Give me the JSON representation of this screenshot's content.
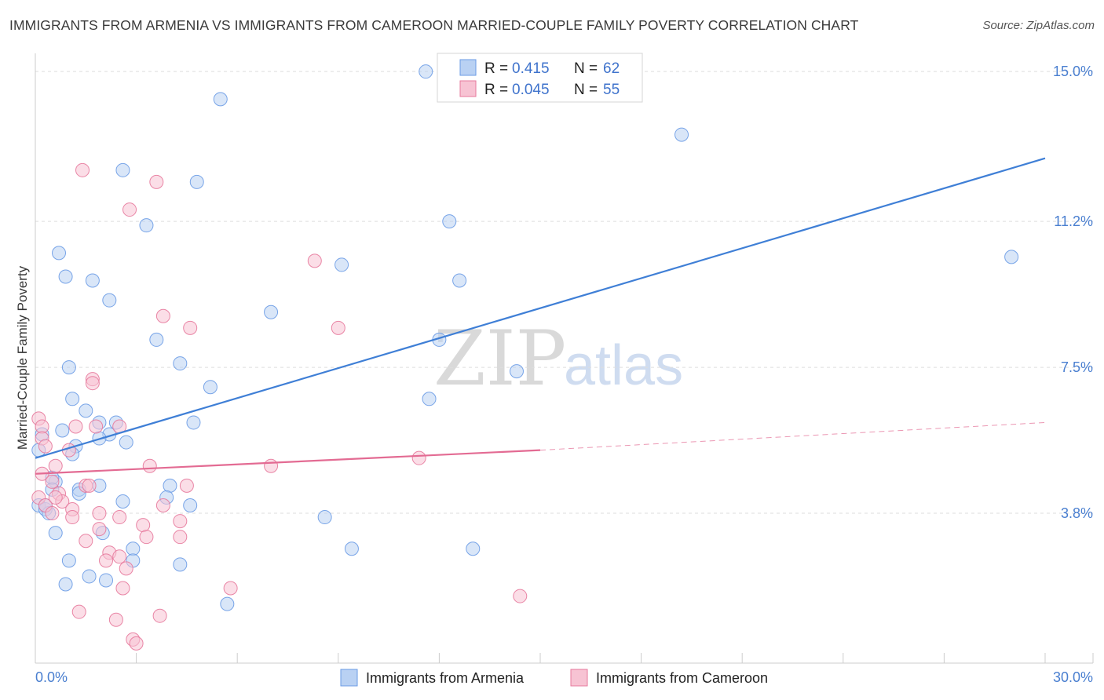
{
  "chart_data": {
    "type": "scatter",
    "title": "IMMIGRANTS FROM ARMENIA VS IMMIGRANTS FROM CAMEROON MARRIED-COUPLE FAMILY POVERTY CORRELATION CHART",
    "source": "Source: ZipAtlas.com",
    "ylabel": "Married-Couple Family Poverty",
    "xlim": [
      0,
      30
    ],
    "ylim": [
      0,
      15.7
    ],
    "x_tick_labels": {
      "min": "0.0%",
      "max": "30.0%"
    },
    "y_ticks": [
      {
        "value": 3.8,
        "label": "3.8%"
      },
      {
        "value": 7.5,
        "label": "7.5%"
      },
      {
        "value": 11.2,
        "label": "11.2%"
      },
      {
        "value": 15.0,
        "label": "15.0%"
      }
    ],
    "legend": {
      "rows": [
        {
          "r_label": "R =",
          "r_value": "0.415",
          "n_label": "N =",
          "n_value": "62"
        },
        {
          "r_label": "R =",
          "r_value": "0.045",
          "n_label": "N =",
          "n_value": "55"
        }
      ]
    },
    "watermark": {
      "zip": "ZIP",
      "atlas": "atlas"
    },
    "series": [
      {
        "name": "Immigrants from Armenia",
        "color": "#6a9be6",
        "fill": "#b9d1f3",
        "trend": {
          "x_start": 0,
          "y_start": 5.2,
          "x_end": 30,
          "y_end": 12.8,
          "dashed_from": null
        },
        "points": [
          [
            11.6,
            15.0
          ],
          [
            5.5,
            14.3
          ],
          [
            19.2,
            13.4
          ],
          [
            2.6,
            12.5
          ],
          [
            4.8,
            12.2
          ],
          [
            3.3,
            11.1
          ],
          [
            12.3,
            11.2
          ],
          [
            29.0,
            10.3
          ],
          [
            0.7,
            10.4
          ],
          [
            9.1,
            10.1
          ],
          [
            0.9,
            9.8
          ],
          [
            1.7,
            9.7
          ],
          [
            12.6,
            9.7
          ],
          [
            2.2,
            9.2
          ],
          [
            7.0,
            8.9
          ],
          [
            3.6,
            8.2
          ],
          [
            12.0,
            8.2
          ],
          [
            4.3,
            7.6
          ],
          [
            1.0,
            7.5
          ],
          [
            14.3,
            7.4
          ],
          [
            5.2,
            7.0
          ],
          [
            1.1,
            6.7
          ],
          [
            11.7,
            6.7
          ],
          [
            1.5,
            6.4
          ],
          [
            4.7,
            6.1
          ],
          [
            1.9,
            6.1
          ],
          [
            2.4,
            6.1
          ],
          [
            0.8,
            5.9
          ],
          [
            0.2,
            5.8
          ],
          [
            2.2,
            5.8
          ],
          [
            1.9,
            5.7
          ],
          [
            2.7,
            5.6
          ],
          [
            1.2,
            5.5
          ],
          [
            0.1,
            5.4
          ],
          [
            1.1,
            5.3
          ],
          [
            0.6,
            4.6
          ],
          [
            0.5,
            4.7
          ],
          [
            1.3,
            4.4
          ],
          [
            1.9,
            4.5
          ],
          [
            4.0,
            4.5
          ],
          [
            0.5,
            4.4
          ],
          [
            1.3,
            4.3
          ],
          [
            3.9,
            4.2
          ],
          [
            4.6,
            4.0
          ],
          [
            0.1,
            4.0
          ],
          [
            0.3,
            3.9
          ],
          [
            0.4,
            3.8
          ],
          [
            0.3,
            4.0
          ],
          [
            8.6,
            3.7
          ],
          [
            2.0,
            3.3
          ],
          [
            0.6,
            3.3
          ],
          [
            9.4,
            2.9
          ],
          [
            13.0,
            2.9
          ],
          [
            2.9,
            2.9
          ],
          [
            1.0,
            2.6
          ],
          [
            2.9,
            2.6
          ],
          [
            4.3,
            2.5
          ],
          [
            1.6,
            2.2
          ],
          [
            2.1,
            2.1
          ],
          [
            0.9,
            2.0
          ],
          [
            5.7,
            1.5
          ],
          [
            2.6,
            4.1
          ]
        ]
      },
      {
        "name": "Immigrants from Cameroon",
        "color": "#e7799c",
        "fill": "#f7c3d3",
        "trend": {
          "x_start": 0,
          "y_start": 4.8,
          "x_end": 15.0,
          "y_end": 5.4,
          "dashed_to_x": 30,
          "dashed_to_y": 6.1
        },
        "points": [
          [
            1.4,
            12.5
          ],
          [
            3.6,
            12.2
          ],
          [
            2.8,
            11.5
          ],
          [
            8.3,
            10.2
          ],
          [
            3.8,
            8.8
          ],
          [
            9.0,
            8.5
          ],
          [
            4.6,
            8.5
          ],
          [
            1.7,
            7.2
          ],
          [
            1.7,
            7.1
          ],
          [
            0.1,
            6.2
          ],
          [
            0.2,
            6.0
          ],
          [
            2.5,
            6.0
          ],
          [
            1.2,
            6.0
          ],
          [
            1.8,
            6.0
          ],
          [
            0.2,
            5.7
          ],
          [
            1.0,
            5.4
          ],
          [
            0.3,
            5.5
          ],
          [
            11.4,
            5.2
          ],
          [
            7.0,
            5.0
          ],
          [
            0.6,
            5.0
          ],
          [
            3.4,
            5.0
          ],
          [
            0.2,
            4.8
          ],
          [
            0.5,
            4.6
          ],
          [
            1.5,
            4.5
          ],
          [
            1.6,
            4.5
          ],
          [
            4.5,
            4.5
          ],
          [
            0.7,
            4.3
          ],
          [
            0.1,
            4.2
          ],
          [
            0.8,
            4.1
          ],
          [
            0.3,
            4.0
          ],
          [
            3.8,
            4.0
          ],
          [
            1.1,
            3.9
          ],
          [
            0.5,
            3.8
          ],
          [
            1.9,
            3.8
          ],
          [
            1.1,
            3.7
          ],
          [
            2.5,
            3.7
          ],
          [
            3.2,
            3.5
          ],
          [
            4.3,
            3.6
          ],
          [
            1.9,
            3.4
          ],
          [
            3.3,
            3.2
          ],
          [
            4.3,
            3.2
          ],
          [
            1.5,
            3.1
          ],
          [
            2.2,
            2.8
          ],
          [
            2.5,
            2.7
          ],
          [
            2.1,
            2.6
          ],
          [
            2.7,
            2.4
          ],
          [
            2.6,
            1.9
          ],
          [
            5.8,
            1.9
          ],
          [
            14.4,
            1.7
          ],
          [
            1.3,
            1.3
          ],
          [
            3.7,
            1.2
          ],
          [
            2.4,
            1.1
          ],
          [
            2.9,
            0.6
          ],
          [
            3.0,
            0.5
          ],
          [
            0.6,
            4.2
          ]
        ]
      }
    ]
  }
}
